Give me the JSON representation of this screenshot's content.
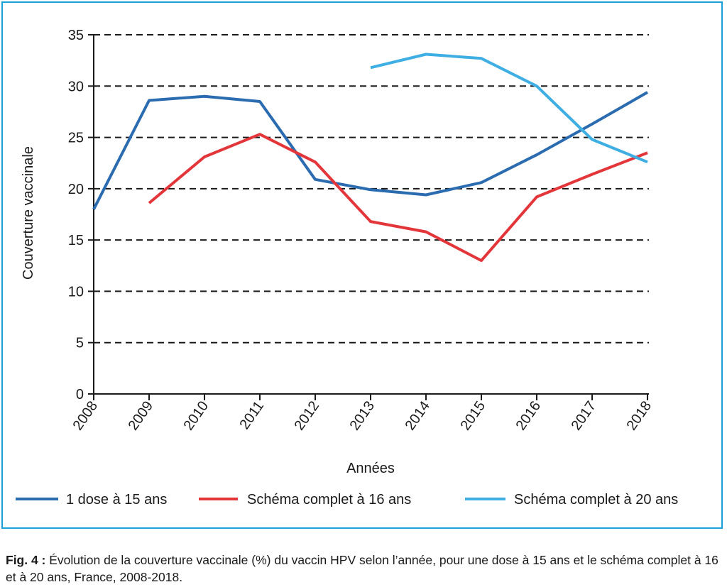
{
  "chart_data": {
    "type": "line",
    "xlabel": "Années",
    "ylabel": "Couverture vaccinale",
    "x": [
      "2008",
      "2009",
      "2010",
      "2011",
      "2012",
      "2013",
      "2014",
      "2015",
      "2016",
      "2017",
      "2018"
    ],
    "ylim": [
      0,
      35
    ],
    "yticks": [
      0,
      5,
      10,
      15,
      20,
      25,
      30,
      35
    ],
    "grid": "horizontal dashed",
    "legend_position": "bottom",
    "series": [
      {
        "name": "1 dose à 15 ans",
        "color": "#2b6cb0",
        "values": [
          18.0,
          28.6,
          29.0,
          28.5,
          20.9,
          19.9,
          19.4,
          20.6,
          23.3,
          26.3,
          29.4
        ]
      },
      {
        "name": "Schéma complet à 16 ans",
        "color": "#e2363a",
        "values": [
          null,
          18.6,
          23.1,
          25.3,
          22.6,
          16.8,
          15.8,
          13.0,
          19.2,
          21.4,
          23.5
        ]
      },
      {
        "name": "Schéma complet à 20 ans",
        "color": "#3eaee3",
        "values": [
          null,
          null,
          null,
          null,
          null,
          31.8,
          33.1,
          32.7,
          30.0,
          24.8,
          22.6
        ]
      }
    ]
  },
  "caption": {
    "label": "Fig. 4 :",
    "text": " Évolution de la couverture vaccinale (%) du vaccin HPV selon l’année, pour une dose à 15 ans et le schéma complet à 16 et à 20 ans, France, 2008-2018."
  },
  "colors": {
    "frame": "#1aa1d8",
    "axis": "#1a1a1a",
    "grid": "#1a1a1a"
  }
}
